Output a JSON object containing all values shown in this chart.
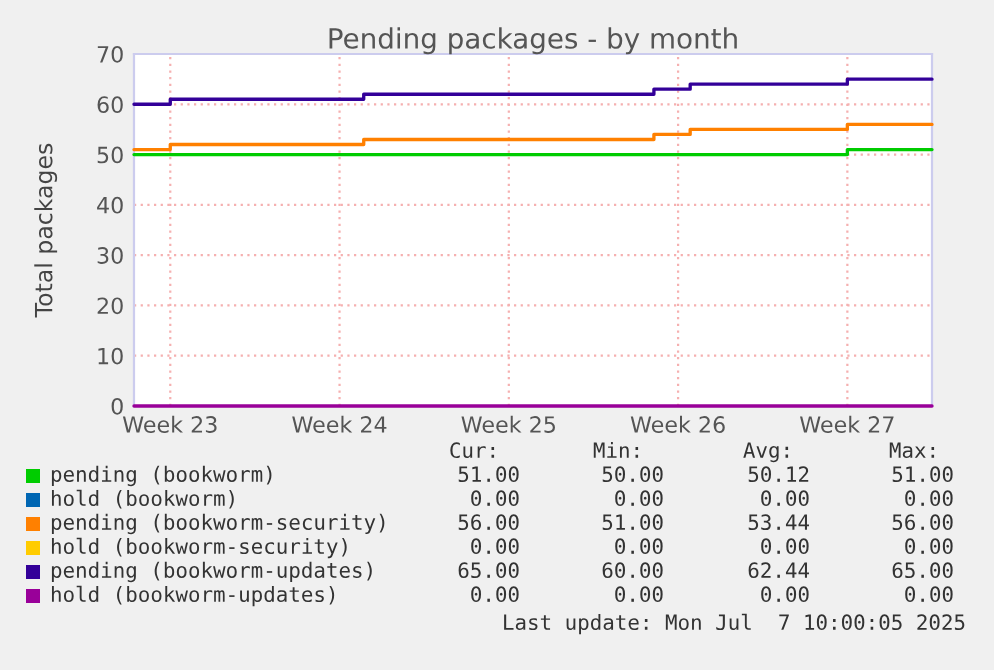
{
  "chart_data": {
    "type": "step",
    "title": "Pending packages - by month",
    "ylabel": "Total packages",
    "categories": [
      null,
      null,
      null,
      "Week 23",
      null,
      null,
      null,
      null,
      null,
      null,
      null,
      null,
      null,
      null,
      null,
      null,
      null,
      "Week 24",
      null,
      null,
      null,
      null,
      null,
      null,
      null,
      null,
      null,
      null,
      null,
      null,
      null,
      "Week 25",
      null,
      null,
      null,
      null,
      null,
      null,
      null,
      null,
      null,
      null,
      null,
      null,
      null,
      "Week 26",
      null,
      null,
      null,
      null,
      null,
      null,
      null,
      null,
      null,
      null,
      null,
      null,
      null,
      "Week 27",
      null,
      null,
      null,
      null,
      null,
      null,
      null
    ],
    "ylim": [
      0,
      70
    ],
    "yticks": [
      0,
      10,
      20,
      30,
      40,
      50,
      60,
      70
    ],
    "grid": true,
    "legend": "bottom",
    "series": [
      {
        "name": "pending (bookworm)",
        "color": "#00cc00",
        "values": [
          50,
          50,
          50,
          50,
          50,
          50,
          50,
          50,
          50,
          50,
          50,
          50,
          50,
          50,
          50,
          50,
          50,
          50,
          50,
          50,
          50,
          50,
          50,
          50,
          50,
          50,
          50,
          50,
          50,
          50,
          50,
          50,
          50,
          50,
          50,
          50,
          50,
          50,
          50,
          50,
          50,
          50,
          50,
          50,
          50,
          50,
          50,
          50,
          50,
          50,
          50,
          50,
          50,
          50,
          50,
          50,
          50,
          50,
          50,
          51,
          51,
          51,
          51,
          51,
          51,
          51,
          51
        ]
      },
      {
        "name": "hold (bookworm)",
        "color": "#0066b3",
        "values": [
          null,
          null,
          null,
          null,
          null,
          null,
          null,
          null,
          null,
          null,
          null,
          null,
          null,
          null,
          null,
          null,
          null,
          null,
          null,
          null,
          null,
          null,
          null,
          null,
          null,
          null,
          null,
          null,
          null,
          null,
          null,
          null,
          null,
          null,
          null,
          null,
          null,
          null,
          null,
          null,
          null,
          null,
          null,
          null,
          null,
          null,
          null,
          null,
          null,
          null,
          null,
          null,
          null,
          null,
          null,
          null,
          null,
          null,
          null,
          null,
          null,
          null,
          null,
          null,
          null,
          null,
          null
        ]
      },
      {
        "name": "pending (bookworm-security)",
        "color": "#ff8000",
        "values": [
          51,
          51,
          51,
          52,
          52,
          52,
          52,
          52,
          52,
          52,
          52,
          52,
          52,
          52,
          52,
          52,
          52,
          52,
          52,
          53,
          53,
          53,
          53,
          53,
          53,
          53,
          53,
          53,
          53,
          53,
          53,
          53,
          53,
          53,
          53,
          53,
          53,
          53,
          53,
          53,
          53,
          53,
          53,
          54,
          54,
          54,
          55,
          55,
          55,
          55,
          55,
          55,
          55,
          55,
          55,
          55,
          55,
          55,
          55,
          56,
          56,
          56,
          56,
          56,
          56,
          56,
          56
        ]
      },
      {
        "name": "hold (bookworm-security)",
        "color": "#ffcc00",
        "values": [
          null,
          null,
          null,
          null,
          null,
          null,
          null,
          null,
          null,
          null,
          null,
          null,
          null,
          null,
          null,
          null,
          null,
          null,
          null,
          null,
          null,
          null,
          null,
          null,
          null,
          null,
          null,
          null,
          null,
          null,
          null,
          null,
          null,
          null,
          null,
          null,
          null,
          null,
          null,
          null,
          null,
          null,
          null,
          null,
          null,
          null,
          null,
          null,
          null,
          null,
          null,
          null,
          null,
          null,
          null,
          null,
          null,
          null,
          null,
          null,
          null,
          null,
          null,
          null,
          null,
          null,
          null
        ]
      },
      {
        "name": "pending (bookworm-updates)",
        "color": "#330099",
        "values": [
          60,
          60,
          60,
          61,
          61,
          61,
          61,
          61,
          61,
          61,
          61,
          61,
          61,
          61,
          61,
          61,
          61,
          61,
          61,
          62,
          62,
          62,
          62,
          62,
          62,
          62,
          62,
          62,
          62,
          62,
          62,
          62,
          62,
          62,
          62,
          62,
          62,
          62,
          62,
          62,
          62,
          62,
          62,
          63,
          63,
          63,
          64,
          64,
          64,
          64,
          64,
          64,
          64,
          64,
          64,
          64,
          64,
          64,
          64,
          65,
          65,
          65,
          65,
          65,
          65,
          65,
          65
        ]
      },
      {
        "name": "hold (bookworm-updates)",
        "color": "#990099",
        "values": [
          0,
          0,
          0,
          0,
          0,
          0,
          0,
          0,
          0,
          0,
          0,
          0,
          0,
          0,
          0,
          0,
          0,
          0,
          0,
          0,
          0,
          0,
          0,
          0,
          0,
          0,
          0,
          0,
          0,
          0,
          0,
          0,
          0,
          0,
          0,
          0,
          0,
          0,
          0,
          0,
          0,
          0,
          0,
          0,
          0,
          0,
          0,
          0,
          0,
          0,
          0,
          0,
          0,
          0,
          0,
          0,
          0,
          0,
          0,
          0,
          0,
          0,
          0,
          0,
          0,
          0,
          0
        ]
      }
    ],
    "annotations": [
      "Cur:",
      "Min:",
      "Avg:",
      "Max:",
      "51.00",
      "50.00",
      "50.12",
      "51.00",
      "0.00",
      "0.00",
      "0.00",
      "0.00",
      "56.00",
      "51.00",
      "53.44",
      "56.00",
      "0.00",
      "0.00",
      "0.00",
      "0.00",
      "65.00",
      "60.00",
      "62.44",
      "65.00",
      "0.00",
      "0.00",
      "0.00",
      "0.00",
      "Last update: Mon Jul  7 10:00:05 2025"
    ]
  }
}
